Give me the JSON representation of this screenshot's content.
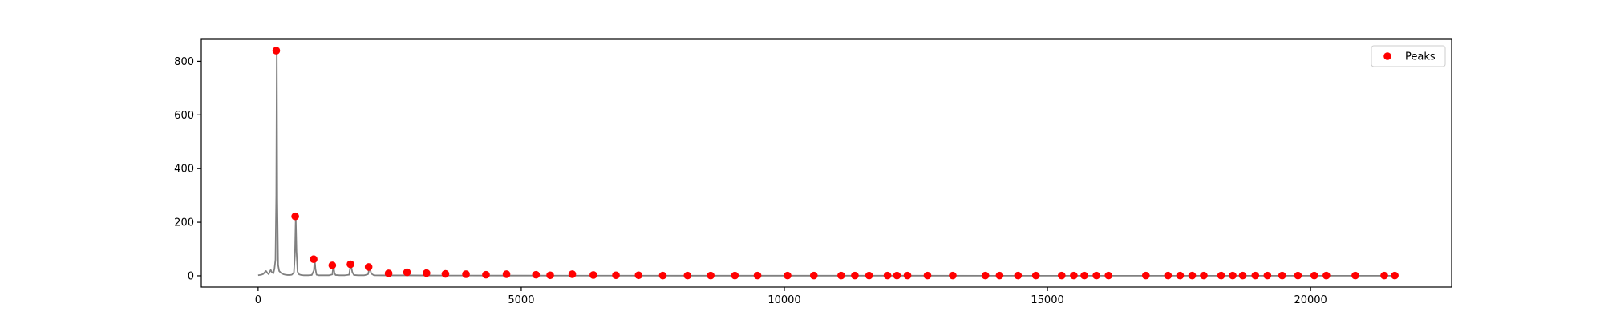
{
  "chart_data": {
    "type": "line",
    "title": "",
    "xlabel": "",
    "ylabel": "",
    "xlim": [
      -1080,
      22680
    ],
    "ylim": [
      -42,
      882
    ],
    "x_ticks": [
      0,
      5000,
      10000,
      15000,
      20000
    ],
    "y_ticks": [
      0,
      200,
      400,
      600,
      800
    ],
    "grid": false,
    "legend": {
      "placement": "top-right",
      "entries": [
        "Peaks"
      ]
    },
    "colors": {
      "spectrum": "#808080",
      "peaks": "#ff0000",
      "axes": "#000000"
    },
    "series": [
      {
        "type": "line",
        "x": [
          0,
          60,
          100,
          120,
          150,
          180,
          200,
          220,
          240,
          260,
          290,
          310,
          330,
          345,
          355,
          365,
          380,
          400,
          440,
          480,
          520,
          560,
          600,
          640,
          680,
          700,
          715,
          730,
          750,
          780,
          820,
          860,
          900,
          960,
          1020,
          1060,
          1075,
          1090,
          1110,
          1150,
          1250,
          1350,
          1410,
          1430,
          1450,
          1470,
          1550,
          1650,
          1730,
          1760,
          1790,
          1820,
          1900,
          2020,
          2090,
          2120,
          2150,
          2200,
          2400,
          2800,
          3200,
          3600,
          4000,
          5000,
          6000,
          8000,
          10000,
          12000,
          14000,
          16000,
          18000,
          20000,
          21600
        ],
        "y": [
          2,
          4,
          7,
          12,
          18,
          10,
          6,
          14,
          22,
          14,
          9,
          25,
          60,
          300,
          840,
          280,
          40,
          18,
          10,
          6,
          4,
          3,
          3,
          4,
          12,
          80,
          222,
          90,
          15,
          5,
          3,
          2,
          2,
          2,
          3,
          20,
          62,
          25,
          4,
          2,
          2,
          2,
          5,
          39,
          12,
          3,
          2,
          2,
          4,
          43,
          14,
          3,
          2,
          2,
          6,
          33,
          8,
          2,
          1.5,
          1.5,
          1.2,
          1,
          1,
          0.8,
          0.6,
          0.5,
          0.4,
          0.4,
          0.3,
          0.3,
          0.3,
          0.3,
          0.3
        ]
      },
      {
        "name": "Peaks",
        "type": "scatter",
        "x": [
          345,
          705,
          1055,
          1410,
          1755,
          2100,
          2480,
          2830,
          3200,
          3560,
          3950,
          4330,
          4720,
          5280,
          5550,
          5970,
          6370,
          6800,
          7230,
          7690,
          8160,
          8600,
          9060,
          9490,
          10060,
          10560,
          11080,
          11340,
          11610,
          11960,
          12140,
          12340,
          12720,
          13200,
          13820,
          14090,
          14440,
          14780,
          15270,
          15500,
          15700,
          15930,
          16160,
          16870,
          17290,
          17520,
          17750,
          17970,
          18300,
          18520,
          18710,
          18950,
          19180,
          19460,
          19760,
          20070,
          20300,
          20850,
          21400,
          21600
        ],
        "y": [
          840,
          222,
          62,
          39,
          43,
          33,
          9,
          13,
          10,
          7,
          6,
          4,
          6,
          4,
          2,
          6,
          3,
          2,
          2,
          1,
          1,
          1,
          1,
          1,
          1,
          1,
          1,
          1,
          1,
          1,
          1,
          1,
          1,
          1,
          1,
          1,
          1,
          1,
          1,
          1,
          1,
          1,
          1,
          1,
          1,
          1,
          1,
          1,
          1,
          1,
          1,
          1,
          1,
          1,
          1,
          1,
          1,
          1,
          1,
          1
        ]
      }
    ]
  }
}
